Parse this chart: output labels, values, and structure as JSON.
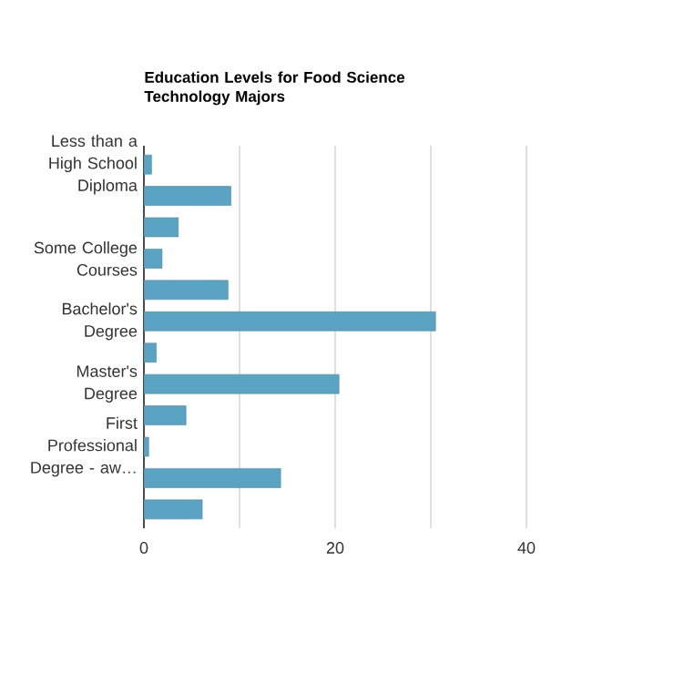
{
  "chart_data": {
    "type": "bar",
    "orientation": "horizontal",
    "title": "Education Levels for Food Science Technology Majors",
    "categories": [
      "Less than a High School Diploma",
      null,
      null,
      "Some College Courses",
      null,
      "Bachelor's Degree",
      null,
      "Master's Degree",
      null,
      "First Professional Degree - aw…",
      null,
      null
    ],
    "values": [
      0.8,
      9.1,
      3.6,
      1.9,
      8.8,
      30.5,
      1.3,
      20.4,
      4.4,
      0.5,
      14.3,
      6.1
    ],
    "color": "#5ba3c2",
    "xlim": [
      0,
      40
    ],
    "xticks": [
      0,
      {
        "value": 10,
        "label": null
      },
      20,
      {
        "value": 30,
        "label": null
      },
      40
    ],
    "grid": "x"
  }
}
